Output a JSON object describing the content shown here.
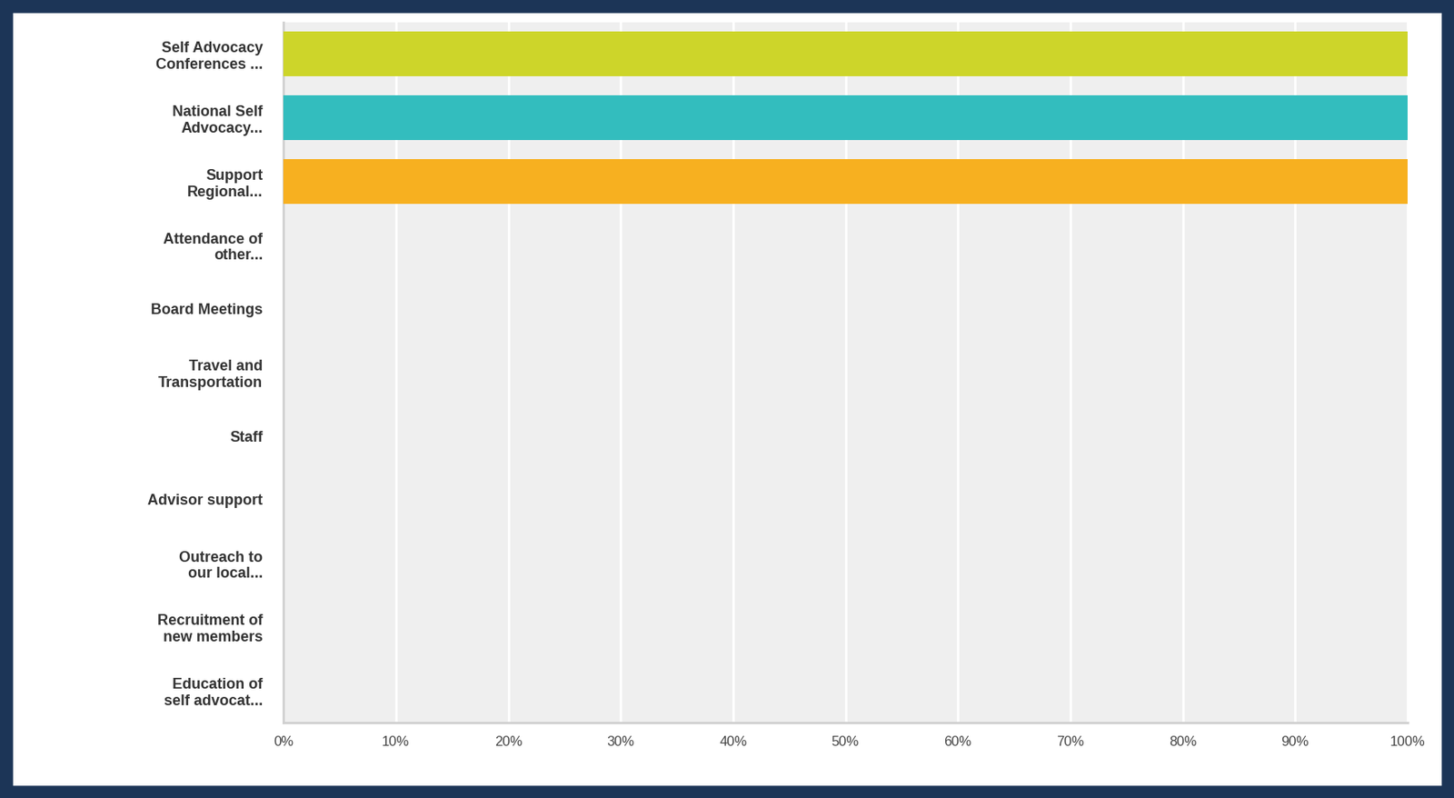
{
  "chart_data": {
    "type": "bar",
    "orientation": "horizontal",
    "categories": [
      "Self Advocacy\nConferences ...",
      "National Self\nAdvocacy...",
      "Support\nRegional...",
      "Attendance of\nother...",
      "Board Meetings",
      "Travel and\nTransportation",
      "Staff",
      "Advisor support",
      "Outreach to\nour local...",
      "Recruitment of\nnew members",
      "Education of\nself advocat..."
    ],
    "values": [
      100,
      100,
      100,
      0,
      0,
      0,
      0,
      0,
      0,
      0,
      0
    ],
    "colors": [
      "#cdd52a",
      "#33bdbe",
      "#f7b020",
      "#5b9bd5",
      "#a5a5a5",
      "#70ad47",
      "#ed7d31",
      "#4472c4",
      "#ffc000",
      "#9e480e",
      "#636363"
    ],
    "xlim": [
      0,
      100
    ],
    "xticks": [
      {
        "value": 0,
        "label": "0%"
      },
      {
        "value": 10,
        "label": "10%"
      },
      {
        "value": 20,
        "label": "20%"
      },
      {
        "value": 30,
        "label": "30%"
      },
      {
        "value": 40,
        "label": "40%"
      },
      {
        "value": 50,
        "label": "50%"
      },
      {
        "value": 60,
        "label": "60%"
      },
      {
        "value": 70,
        "label": "70%"
      },
      {
        "value": 80,
        "label": "80%"
      },
      {
        "value": 90,
        "label": "90%"
      },
      {
        "value": 100,
        "label": "100%"
      }
    ],
    "grid": true
  }
}
